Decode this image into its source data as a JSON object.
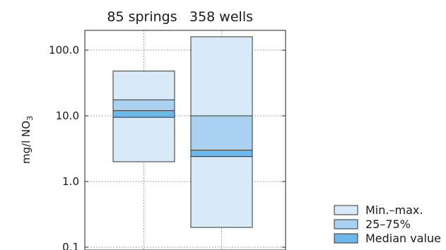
{
  "chart_data": {
    "type": "bar",
    "subtype": "floating range bars (log scale)",
    "categories": [
      "85 springs",
      "358 wells"
    ],
    "ylabel": "mg/l NO",
    "ylabel_subscript": "3",
    "yscale": "log",
    "ylim": [
      0.1,
      200
    ],
    "yticks": [
      0.1,
      1.0,
      10.0,
      100.0
    ],
    "ytick_labels": [
      "0.1",
      "1.0",
      "10.0",
      "100.0"
    ],
    "grid": "dotted",
    "legend_position": "bottom-right",
    "series": [
      {
        "name": "Min.–max.",
        "color": "#d8eaf8",
        "ranges": [
          [
            2.0,
            48
          ],
          [
            0.2,
            160
          ]
        ]
      },
      {
        "name": "25–75%",
        "color": "#a8d2f0",
        "ranges": [
          [
            9.5,
            17.5
          ],
          [
            2.4,
            10.0
          ]
        ]
      },
      {
        "name": "Median value",
        "color": "#6db8e8",
        "ranges": [
          [
            9.5,
            12.0
          ],
          [
            2.4,
            3.0
          ]
        ]
      }
    ]
  }
}
